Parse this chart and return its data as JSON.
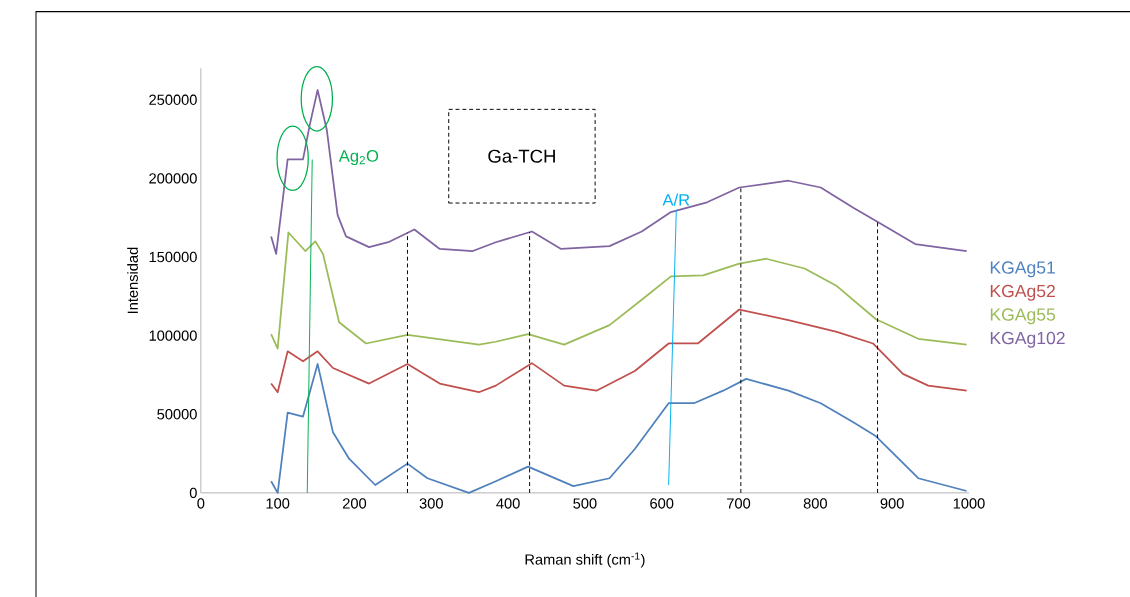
{
  "chart_data": {
    "type": "line",
    "xlabel": "Raman shift (cm$^{-1}$)",
    "ylabel": "Intensidad",
    "xlim": [
      0,
      1000
    ],
    "xticks": [
      0,
      100,
      200,
      300,
      400,
      500,
      600,
      700,
      800,
      900,
      1000
    ],
    "ylim": [
      0,
      270000
    ],
    "yticks": [
      0,
      50000,
      100000,
      150000,
      200000,
      250000
    ],
    "grid": false,
    "legend": "right",
    "line_style": "solid",
    "marker": "none",
    "series": [
      {
        "name": "KGAg51",
        "color": "#4f81bd",
        "x": [
          91.5,
          100,
          113,
          133,
          152,
          172,
          193,
          227,
          269,
          295,
          349,
          384,
          426,
          485,
          532,
          565,
          609,
          642,
          680,
          710,
          765,
          807,
          850,
          879,
          934,
          997
        ],
        "values": [
          7400,
          0,
          51000,
          48500,
          82000,
          38500,
          21700,
          5000,
          18600,
          9300,
          0,
          7400,
          16700,
          4300,
          9300,
          27900,
          57000,
          57000,
          65000,
          72500,
          65000,
          57000,
          44700,
          36000,
          9300,
          1200
        ]
      },
      {
        "name": "KGAg52",
        "color": "#c0504d",
        "x": [
          91.5,
          100,
          113,
          133,
          152,
          172,
          219,
          269,
          311,
          362,
          384,
          431,
          473,
          515,
          565,
          609,
          647,
          701,
          765,
          828,
          875,
          914,
          947,
          997
        ],
        "values": [
          69500,
          64000,
          90000,
          83700,
          90000,
          79400,
          69500,
          81900,
          69500,
          64000,
          68200,
          82500,
          68200,
          65000,
          77500,
          95000,
          95000,
          116600,
          109800,
          102400,
          95000,
          75700,
          68200,
          65000
        ]
      },
      {
        "name": "KGAg55",
        "color": "#9bbb59",
        "x": [
          91.5,
          100,
          114,
          136,
          149,
          159,
          180,
          215,
          269,
          362,
          384,
          426,
          473,
          532,
          574,
          612,
          654,
          701,
          736,
          786,
          828,
          879,
          934,
          997
        ],
        "values": [
          101000,
          91800,
          165600,
          153800,
          160000,
          152000,
          108500,
          95000,
          100500,
          94300,
          96100,
          101000,
          94300,
          106700,
          122800,
          137700,
          138300,
          145800,
          148900,
          142700,
          131500,
          110400,
          98000,
          94300
        ]
      },
      {
        "name": "KGAg102",
        "color": "#8064a2",
        "x": [
          91.5,
          98,
          113,
          133,
          142,
          152,
          164,
          178,
          189,
          219,
          244,
          278,
          311,
          354,
          384,
          431,
          469,
          532,
          574,
          612,
          659,
          701,
          765,
          807,
          850,
          883,
          930,
          997
        ],
        "values": [
          163100,
          152000,
          212100,
          212100,
          234500,
          256200,
          230800,
          176800,
          163100,
          156300,
          159400,
          167500,
          155100,
          153800,
          159400,
          166200,
          155100,
          156900,
          166200,
          178600,
          184800,
          194200,
          198500,
          194200,
          181100,
          171800,
          158200,
          153800
        ]
      },
      {
        "color": "#00b050",
        "x": [
          138.5,
          145
        ],
        "values": [
          0,
          212000
        ]
      },
      {
        "color": "#00b0f0",
        "x": [
          609,
          619
        ],
        "values": [
          5000,
          180000
        ]
      }
    ],
    "ref_lines": [
      {
        "axis": "x",
        "value": 269,
        "color": "#000000",
        "line_style": "dashed"
      },
      {
        "axis": "x",
        "value": 428,
        "color": "#000000",
        "line_style": "dashed"
      },
      {
        "axis": "x",
        "value": 703,
        "color": "#000000",
        "line_style": "dashed"
      },
      {
        "axis": "x",
        "value": 881,
        "color": "#000000",
        "line_style": "dashed"
      }
    ],
    "annotations": [
      "Ag$_{2}$O",
      "A/R",
      "Ga-TCH"
    ]
  }
}
